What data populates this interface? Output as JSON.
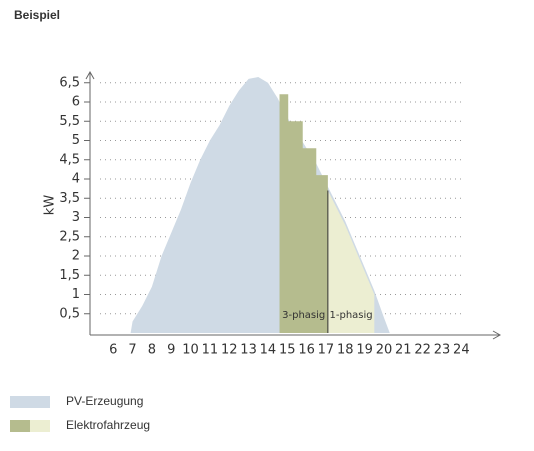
{
  "chart_data": {
    "type": "area",
    "title": "Beispiel",
    "ylabel": "kW",
    "xlim": [
      4.8,
      26
    ],
    "ylim": [
      0,
      7
    ],
    "xticks": [
      6,
      7,
      8,
      9,
      10,
      11,
      12,
      13,
      14,
      15,
      16,
      17,
      18,
      19,
      20,
      21,
      22,
      23,
      24
    ],
    "yticks": [
      {
        "value": 0.5,
        "label": "0,5"
      },
      1,
      {
        "value": 1.5,
        "label": "1,5"
      },
      2,
      {
        "value": 2.5,
        "label": "2,5"
      },
      3,
      {
        "value": 3.5,
        "label": "3,5"
      },
      4,
      {
        "value": 4.5,
        "label": "4,5"
      },
      5,
      {
        "value": 5.5,
        "label": "5,5"
      },
      6,
      {
        "value": 6.5,
        "label": "6,5"
      }
    ],
    "grid": true,
    "series": [
      {
        "name": "PV-Erzeugung",
        "color": "#cfdae5",
        "x": [
          6.9,
          7,
          7.5,
          8,
          8.5,
          9,
          9.5,
          10,
          10.5,
          11,
          11.5,
          12,
          12.5,
          13,
          13.5,
          14,
          14.5,
          15,
          15.5,
          16,
          16.5,
          17,
          17.5,
          18,
          18.5,
          19,
          19.5,
          20,
          20.3
        ],
        "values": [
          0,
          0.3,
          0.7,
          1.2,
          2.0,
          2.6,
          3.2,
          3.9,
          4.5,
          5.0,
          5.4,
          5.9,
          6.3,
          6.6,
          6.65,
          6.5,
          6.1,
          5.6,
          5.2,
          4.8,
          4.4,
          3.9,
          3.4,
          2.9,
          2.3,
          1.7,
          1.1,
          0.4,
          0
        ]
      },
      {
        "name": "Elektrofahrzeug",
        "parts": [
          {
            "label": "3-phasig",
            "color": "#b5bc8e",
            "x": [
              14.6,
              15.05,
              15.05,
              15.8,
              15.8,
              16.5,
              16.5,
              17.1
            ],
            "values": [
              6.2,
              6.2,
              5.5,
              5.5,
              4.8,
              4.8,
              4.1,
              4.1
            ]
          },
          {
            "label": "1-phasig",
            "color": "#eceed2",
            "x": [
              17.1,
              17.5,
              18,
              18.5,
              19,
              19.5
            ],
            "values": [
              3.7,
              3.3,
              2.8,
              2.2,
              1.6,
              1.0
            ]
          }
        ]
      }
    ]
  }
}
